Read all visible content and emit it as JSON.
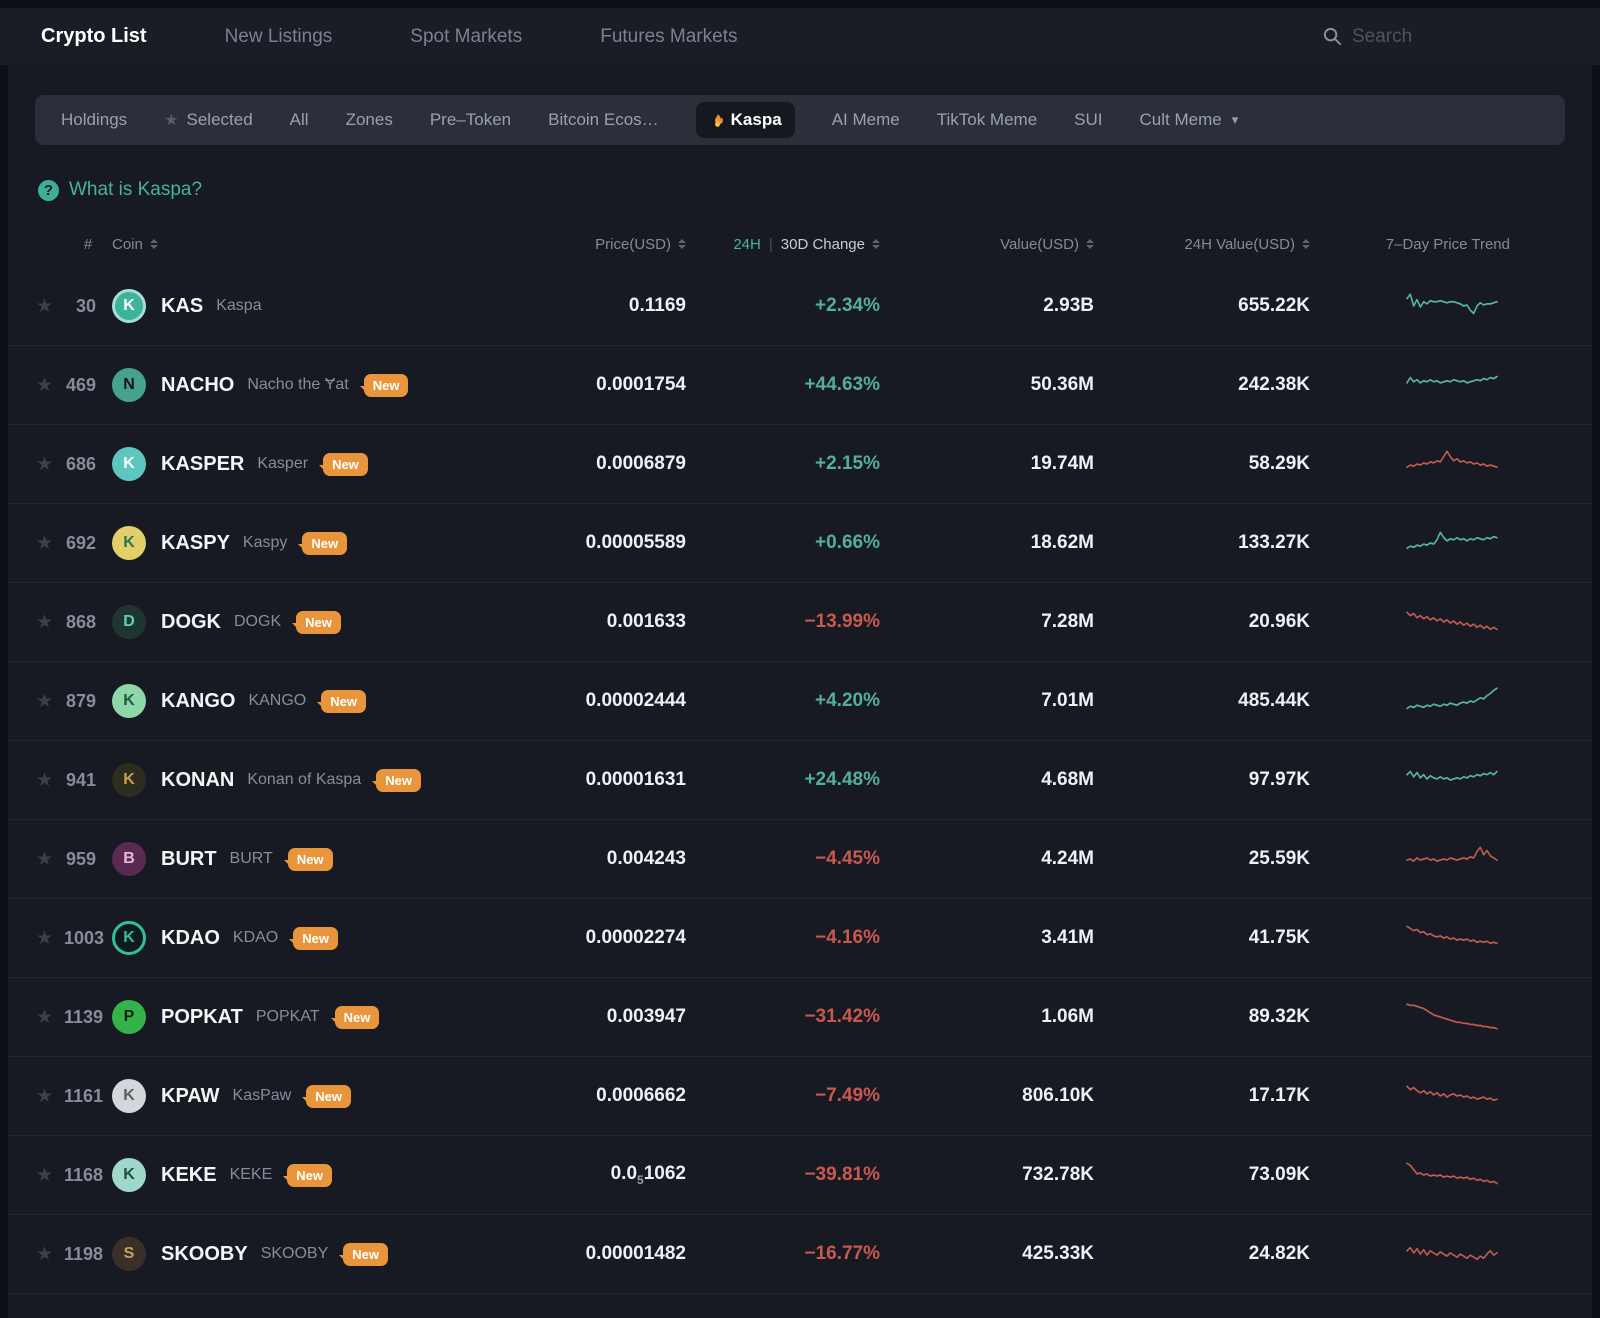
{
  "nav": {
    "items": [
      {
        "label": "Crypto List",
        "active": true
      },
      {
        "label": "New Listings",
        "active": false
      },
      {
        "label": "Spot Markets",
        "active": false
      },
      {
        "label": "Futures Markets",
        "active": false
      }
    ],
    "search_placeholder": "Search"
  },
  "filter": {
    "items": [
      "Holdings",
      "Selected",
      "All",
      "Zones",
      "Pre–Token",
      "Bitcoin Ecos…",
      "Kaspa",
      "AI Meme",
      "TikTok Meme",
      "SUI",
      "Cult Meme"
    ],
    "active_item": "Kaspa"
  },
  "info_link": "What is Kaspa?",
  "icons": {
    "star": "★",
    "caret": "▾",
    "question": "?"
  },
  "colors": {
    "trend_up": "#57b3a5",
    "trend_down": "#bf5b50",
    "change_up": "#53b096",
    "change_down": "#c9594f",
    "accent_teal": "#45b39d",
    "badge_orange": "#e9953c"
  },
  "table": {
    "headers": {
      "rank": "#",
      "coin": "Coin",
      "price": "Price(USD)",
      "change_24h": "24H",
      "change_sep": "|",
      "change_30d": "30D Change",
      "value": "Value(USD)",
      "value24": "24H Value(USD)",
      "trend": "7–Day Price Trend"
    },
    "rows": [
      {
        "rank": "30",
        "symbol": "KAS",
        "name": "Kaspa",
        "badge": null,
        "price": "0.1169",
        "change": "+2.34%",
        "change_dir": "up",
        "value": "2.93B",
        "value24": "655.22K",
        "trend_dir": "up",
        "icon": {
          "bg": "#3eb39c",
          "fg": "#ffffff",
          "glyph": "K",
          "ring": "#a8ded2"
        },
        "trend": [
          9,
          5,
          16,
          10,
          17,
          12,
          14,
          11,
          12,
          12,
          11,
          12,
          13,
          12,
          12,
          13,
          14,
          16,
          15,
          20,
          23,
          16,
          13,
          15,
          14,
          14,
          13,
          12
        ]
      },
      {
        "rank": "469",
        "symbol": "NACHO",
        "name": "Nacho the Ɏat",
        "badge": "New",
        "price": "0.0001754",
        "change": "+44.63%",
        "change_dir": "up",
        "value": "50.36M",
        "value24": "242.38K",
        "trend_dir": "up",
        "icon": {
          "bg": "#47a28c",
          "fg": "#10151c",
          "glyph": "N"
        },
        "trend": [
          14,
          9,
          13,
          11,
          14,
          12,
          13,
          11,
          13,
          12,
          14,
          13,
          12,
          13,
          11,
          12,
          13,
          12,
          14,
          13,
          12,
          11,
          12,
          10,
          11,
          9,
          10,
          8
        ]
      },
      {
        "rank": "686",
        "symbol": "KASPER",
        "name": "Kasper",
        "badge": "New",
        "price": "0.0006879",
        "change": "+2.15%",
        "change_dir": "up",
        "value": "19.74M",
        "value24": "58.29K",
        "trend_dir": "dn",
        "icon": {
          "bg": "#5cc6bf",
          "fg": "#ffffff",
          "glyph": "K"
        },
        "trend": [
          19,
          17,
          18,
          16,
          17,
          15,
          16,
          14,
          15,
          13,
          14,
          9,
          4,
          9,
          13,
          11,
          14,
          13,
          15,
          14,
          16,
          15,
          17,
          16,
          18,
          17,
          18,
          19
        ]
      },
      {
        "rank": "692",
        "symbol": "KASPY",
        "name": "Kaspy",
        "badge": "New",
        "price": "0.00005589",
        "change": "+0.66%",
        "change_dir": "up",
        "value": "18.62M",
        "value24": "133.27K",
        "trend_dir": "up",
        "icon": {
          "bg": "#e3cf67",
          "fg": "#27735f",
          "glyph": "K"
        },
        "trend": [
          21,
          19,
          20,
          18,
          19,
          17,
          18,
          16,
          17,
          13,
          6,
          11,
          14,
          12,
          13,
          11,
          13,
          12,
          14,
          12,
          13,
          11,
          12,
          13,
          11,
          12,
          10,
          11
        ]
      },
      {
        "rank": "868",
        "symbol": "DOGK",
        "name": "DOGK",
        "badge": "New",
        "price": "0.001633",
        "change": "−13.99%",
        "change_dir": "dn",
        "value": "7.28M",
        "value24": "20.96K",
        "trend_dir": "dn",
        "icon": {
          "bg": "#1e3531",
          "fg": "#5fd0b8",
          "glyph": "D"
        },
        "trend": [
          7,
          10,
          8,
          12,
          10,
          13,
          11,
          14,
          12,
          15,
          13,
          16,
          14,
          17,
          15,
          18,
          16,
          19,
          17,
          20,
          18,
          21,
          19,
          22,
          20,
          23,
          21,
          23
        ]
      },
      {
        "rank": "879",
        "symbol": "KANGO",
        "name": "KANGO",
        "badge": "New",
        "price": "0.00002444",
        "change": "+4.20%",
        "change_dir": "up",
        "value": "7.01M",
        "value24": "485.44K",
        "trend_dir": "up",
        "icon": {
          "bg": "#8fd6a8",
          "fg": "#1c5c3a",
          "glyph": "K"
        },
        "trend": [
          23,
          21,
          22,
          20,
          21,
          22,
          20,
          21,
          19,
          20,
          21,
          19,
          20,
          18,
          19,
          20,
          18,
          17,
          18,
          16,
          17,
          15,
          13,
          14,
          11,
          9,
          6,
          4
        ]
      },
      {
        "rank": "941",
        "symbol": "KONAN",
        "name": "Konan of Kaspa",
        "badge": "New",
        "price": "0.00001631",
        "change": "+24.48%",
        "change_dir": "up",
        "value": "4.68M",
        "value24": "97.97K",
        "trend_dir": "up",
        "icon": {
          "bg": "#2c2c1f",
          "fg": "#c9a24a",
          "glyph": "K"
        },
        "trend": [
          11,
          8,
          13,
          9,
          14,
          11,
          15,
          12,
          14,
          15,
          13,
          15,
          14,
          16,
          15,
          14,
          15,
          13,
          14,
          12,
          13,
          11,
          12,
          10,
          11,
          9,
          11,
          8
        ]
      },
      {
        "rank": "959",
        "symbol": "BURT",
        "name": "BURT",
        "badge": "New",
        "price": "0.004243",
        "change": "−4.45%",
        "change_dir": "dn",
        "value": "4.24M",
        "value24": "25.59K",
        "trend_dir": "dn",
        "icon": {
          "bg": "#5a2a55",
          "fg": "#e5b8d6",
          "glyph": "B"
        },
        "trend": [
          17,
          16,
          18,
          15,
          17,
          16,
          15,
          17,
          16,
          18,
          17,
          16,
          17,
          15,
          16,
          17,
          16,
          15,
          16,
          14,
          15,
          9,
          5,
          12,
          8,
          13,
          15,
          17
        ]
      },
      {
        "rank": "1003",
        "symbol": "KDAO",
        "name": "KDAO",
        "badge": "New",
        "price": "0.00002274",
        "change": "−4.16%",
        "change_dir": "dn",
        "value": "3.41M",
        "value24": "41.75K",
        "trend_dir": "dn",
        "icon": {
          "bg": "#101a1e",
          "fg": "#2fbf9f",
          "glyph": "K",
          "ring": "#2fbf9f"
        },
        "trend": [
          5,
          7,
          9,
          8,
          11,
          10,
          13,
          12,
          14,
          15,
          14,
          16,
          15,
          17,
          16,
          18,
          17,
          18,
          17,
          19,
          18,
          20,
          19,
          20,
          19,
          21,
          20,
          21
        ]
      },
      {
        "rank": "1139",
        "symbol": "POPKAT",
        "name": "POPKAT",
        "badge": "New",
        "price": "0.003947",
        "change": "−31.42%",
        "change_dir": "dn",
        "value": "1.06M",
        "value24": "89.32K",
        "trend_dir": "dn",
        "icon": {
          "bg": "#35b24a",
          "fg": "#0d2413",
          "glyph": "P"
        },
        "trend": [
          4,
          5,
          5,
          6,
          7,
          8,
          10,
          12,
          14,
          15,
          16,
          17,
          18,
          19,
          20,
          21,
          21,
          22,
          22,
          23,
          23,
          24,
          24,
          25,
          25,
          26,
          26,
          27
        ]
      },
      {
        "rank": "1161",
        "symbol": "KPAW",
        "name": "KasPaw",
        "badge": "New",
        "price": "0.0006662",
        "change": "−7.49%",
        "change_dir": "dn",
        "value": "806.10K",
        "value24": "17.17K",
        "trend_dir": "dn",
        "icon": {
          "bg": "#d3d6da",
          "fg": "#5a5f66",
          "glyph": "K"
        },
        "trend": [
          7,
          10,
          8,
          11,
          13,
          11,
          14,
          12,
          15,
          13,
          16,
          14,
          17,
          15,
          14,
          16,
          15,
          17,
          16,
          18,
          17,
          19,
          18,
          17,
          19,
          18,
          20,
          19
        ]
      },
      {
        "rank": "1168",
        "symbol": "KEKE",
        "name": "KEKE",
        "badge": "New",
        "price": [
          "0.0",
          "5",
          "1062"
        ],
        "change": "−39.81%",
        "change_dir": "dn",
        "value": "732.78K",
        "value24": "73.09K",
        "trend_dir": "dn",
        "icon": {
          "bg": "#9fd8ca",
          "fg": "#1f4d42",
          "glyph": "K"
        },
        "trend": [
          5,
          7,
          11,
          15,
          14,
          16,
          15,
          17,
          16,
          17,
          16,
          18,
          17,
          18,
          17,
          19,
          18,
          19,
          18,
          20,
          19,
          21,
          20,
          22,
          21,
          23,
          22,
          24
        ]
      },
      {
        "rank": "1198",
        "symbol": "SKOOBY",
        "name": "SKOOBY",
        "badge": "New",
        "price": "0.00001482",
        "change": "−16.77%",
        "change_dir": "dn",
        "value": "425.33K",
        "value24": "24.82K",
        "trend_dir": "dn",
        "icon": {
          "bg": "#3a3028",
          "fg": "#c8a06a",
          "glyph": "S"
        },
        "trend": [
          13,
          10,
          15,
          11,
          16,
          12,
          17,
          13,
          15,
          17,
          14,
          16,
          18,
          15,
          17,
          19,
          16,
          18,
          20,
          17,
          19,
          21,
          18,
          20,
          16,
          13,
          17,
          15
        ]
      }
    ]
  }
}
